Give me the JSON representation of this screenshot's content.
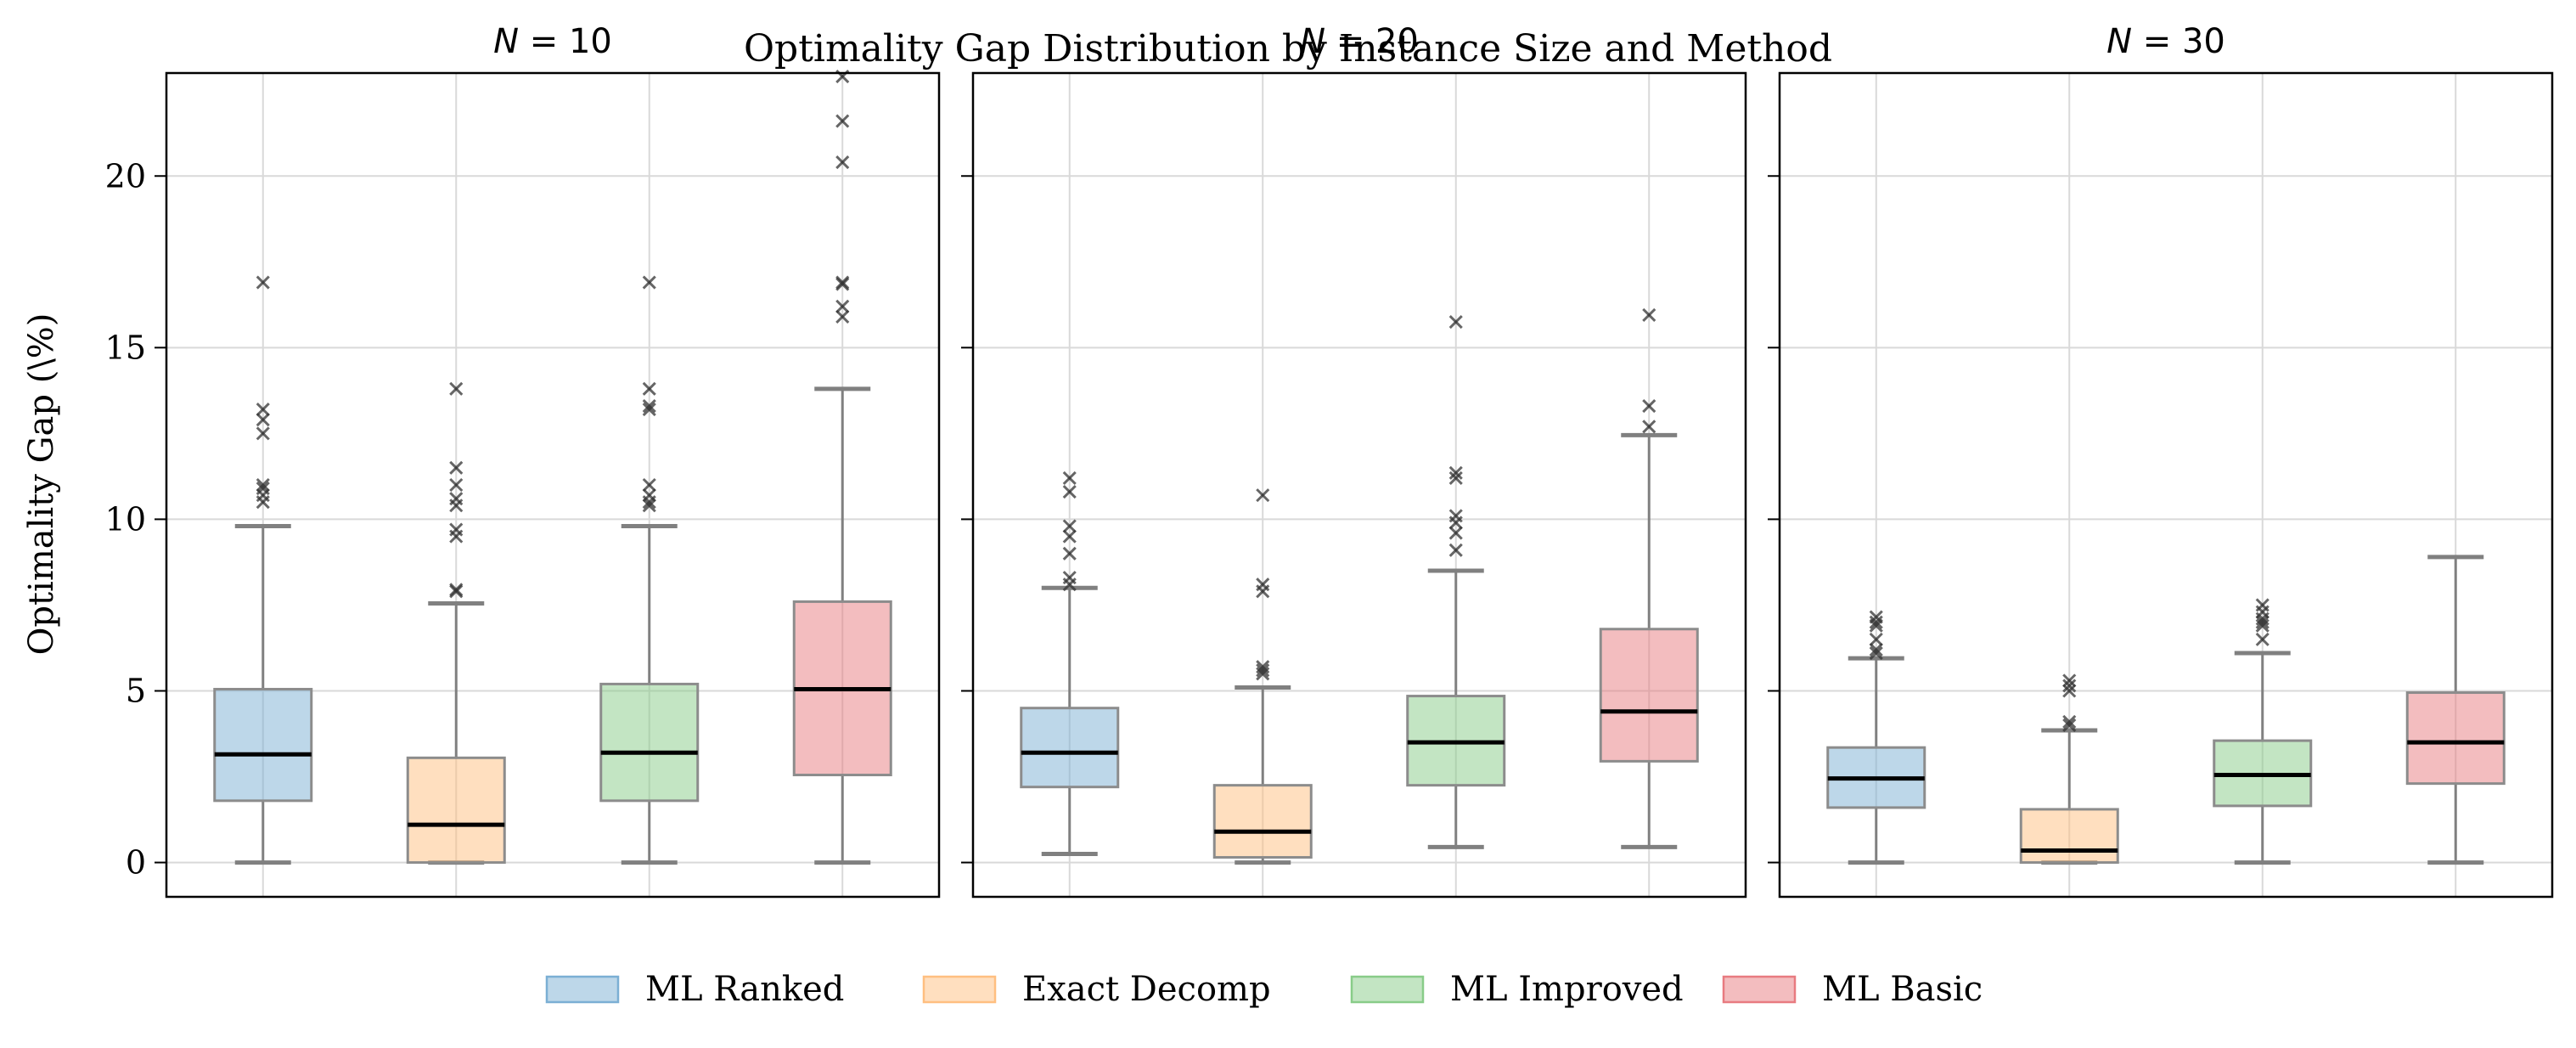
{
  "chart_data": {
    "type": "box",
    "title": "Optimality Gap Distribution by Instance Size and Method",
    "ylabel": "Optimality Gap (\\%)",
    "ylim": [
      -1,
      23
    ],
    "yticks": [
      0,
      5,
      10,
      15,
      20
    ],
    "grid": true,
    "legend_position": "bottom-center",
    "methods": [
      {
        "name": "ML Ranked",
        "color": "#7bafd4"
      },
      {
        "name": "Exact Decomp",
        "color": "#ffbf80"
      },
      {
        "name": "ML Improved",
        "color": "#88cc88"
      },
      {
        "name": "ML Basic",
        "color": "#e87b80"
      }
    ],
    "panels": [
      {
        "title_var": "N",
        "title_eq": " = 10",
        "boxes": [
          {
            "method": "ML Ranked",
            "whisker_low": 0.0,
            "q1": 1.8,
            "median": 3.15,
            "q3": 5.05,
            "whisker_high": 9.8,
            "outliers": [
              10.5,
              10.7,
              10.9,
              11.0,
              12.5,
              12.9,
              13.2,
              16.9
            ]
          },
          {
            "method": "Exact Decomp",
            "whisker_low": 0.0,
            "q1": 0.0,
            "median": 1.1,
            "q3": 3.05,
            "whisker_high": 7.55,
            "outliers": [
              7.9,
              7.95,
              9.5,
              9.7,
              10.4,
              10.6,
              11.0,
              11.5,
              13.8
            ]
          },
          {
            "method": "ML Improved",
            "whisker_low": 0.0,
            "q1": 1.8,
            "median": 3.2,
            "q3": 5.2,
            "whisker_high": 9.8,
            "outliers": [
              10.4,
              10.5,
              10.7,
              11.0,
              13.2,
              13.3,
              13.8,
              16.9
            ]
          },
          {
            "method": "ML Basic",
            "whisker_low": 0.0,
            "q1": 2.55,
            "median": 5.05,
            "q3": 7.6,
            "whisker_high": 13.8,
            "outliers": [
              15.9,
              16.2,
              16.85,
              16.9,
              20.4,
              21.6,
              22.9
            ]
          }
        ]
      },
      {
        "title_var": "N",
        "title_eq": " = 20",
        "boxes": [
          {
            "method": "ML Ranked",
            "whisker_low": 0.25,
            "q1": 2.2,
            "median": 3.2,
            "q3": 4.5,
            "whisker_high": 8.0,
            "outliers": [
              8.1,
              8.3,
              9.0,
              9.5,
              9.8,
              10.8,
              11.2
            ]
          },
          {
            "method": "Exact Decomp",
            "whisker_low": 0.0,
            "q1": 0.15,
            "median": 0.9,
            "q3": 2.25,
            "whisker_high": 5.1,
            "outliers": [
              5.5,
              5.6,
              5.7,
              7.9,
              8.1,
              10.7
            ]
          },
          {
            "method": "ML Improved",
            "whisker_low": 0.45,
            "q1": 2.25,
            "median": 3.5,
            "q3": 4.85,
            "whisker_high": 8.5,
            "outliers": [
              9.1,
              9.6,
              9.9,
              10.1,
              11.2,
              11.35,
              15.75
            ]
          },
          {
            "method": "ML Basic",
            "whisker_low": 0.45,
            "q1": 2.95,
            "median": 4.4,
            "q3": 6.8,
            "whisker_high": 12.45,
            "outliers": [
              12.7,
              13.3,
              15.95
            ]
          }
        ]
      },
      {
        "title_var": "N",
        "title_eq": " = 30",
        "boxes": [
          {
            "method": "ML Ranked",
            "whisker_low": 0.0,
            "q1": 1.6,
            "median": 2.45,
            "q3": 3.35,
            "whisker_high": 5.95,
            "outliers": [
              6.1,
              6.2,
              6.5,
              6.9,
              7.0,
              7.15
            ]
          },
          {
            "method": "Exact Decomp",
            "whisker_low": 0.0,
            "q1": 0.0,
            "median": 0.35,
            "q3": 1.55,
            "whisker_high": 3.85,
            "outliers": [
              4.0,
              4.1,
              5.0,
              5.15,
              5.3
            ]
          },
          {
            "method": "ML Improved",
            "whisker_low": 0.0,
            "q1": 1.65,
            "median": 2.55,
            "q3": 3.55,
            "whisker_high": 6.1,
            "outliers": [
              6.5,
              6.9,
              7.0,
              7.1,
              7.3,
              7.5
            ]
          },
          {
            "method": "ML Basic",
            "whisker_low": 0.0,
            "q1": 2.3,
            "median": 3.5,
            "q3": 4.95,
            "whisker_high": 8.9,
            "outliers": []
          }
        ]
      }
    ]
  }
}
